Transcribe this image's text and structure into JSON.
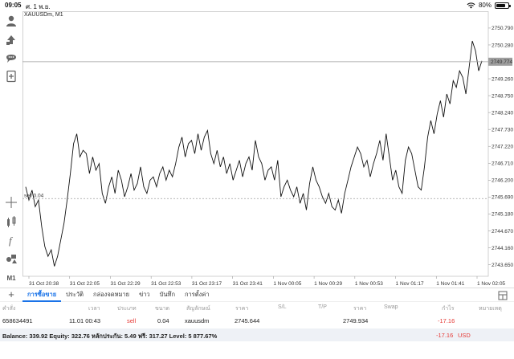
{
  "status_bar": {
    "time": "09:05",
    "date": "ศ. 1 พ.ย.",
    "battery": "80%",
    "battery_level": 0.8
  },
  "chart": {
    "title": "XAUUSDm, M1",
    "current_price": "2749.774",
    "bid_line_label": "sell 0.04",
    "colors": {
      "line": "#111111",
      "grid": "#d9d9d9",
      "current_line": "#9e9e9e",
      "current_tag": "#9e9e9e"
    }
  },
  "chart_data": {
    "type": "line",
    "symbol": "XAUUSDm",
    "timeframe": "M1",
    "y_ticks": [
      "2750.790",
      "2750.280",
      "2749.774",
      "2749.260",
      "2748.750",
      "2748.240",
      "2747.730",
      "2747.220",
      "2746.710",
      "2746.200",
      "2745.690",
      "2745.180",
      "2744.670",
      "2744.160",
      "2743.650"
    ],
    "x_ticks": [
      "31 Oct 20:38",
      "31 Oct 22:05",
      "31 Oct 22:29",
      "31 Oct 22:53",
      "31 Oct 23:17",
      "31 Oct 23:41",
      "1 Nov 00:05",
      "1 Nov 00:29",
      "1 Nov 00:53",
      "1 Nov 01:17",
      "1 Nov 01:41",
      "1 Nov 02:05"
    ],
    "ylim": [
      2743.3,
      2751.2
    ],
    "current_price": 2749.774,
    "order_price": 2745.644,
    "values": [
      2746.0,
      2745.6,
      2745.9,
      2745.4,
      2745.6,
      2744.8,
      2744.2,
      2743.9,
      2744.1,
      2743.6,
      2743.9,
      2744.4,
      2744.9,
      2745.6,
      2746.4,
      2747.3,
      2747.6,
      2746.9,
      2747.1,
      2747.0,
      2746.4,
      2746.9,
      2746.5,
      2746.7,
      2745.8,
      2745.5,
      2746.0,
      2746.3,
      2745.8,
      2746.5,
      2746.2,
      2745.7,
      2746.0,
      2746.4,
      2745.9,
      2746.1,
      2746.6,
      2746.0,
      2745.8,
      2746.2,
      2746.3,
      2746.0,
      2746.4,
      2746.6,
      2746.2,
      2746.5,
      2746.3,
      2746.7,
      2747.2,
      2747.5,
      2746.9,
      2747.3,
      2747.4,
      2747.0,
      2747.6,
      2747.1,
      2747.5,
      2747.7,
      2747.0,
      2746.7,
      2747.1,
      2746.6,
      2746.9,
      2746.4,
      2746.7,
      2746.2,
      2746.5,
      2746.8,
      2746.3,
      2746.7,
      2746.9,
      2746.5,
      2747.4,
      2746.9,
      2746.7,
      2746.2,
      2746.5,
      2746.6,
      2746.2,
      2746.8,
      2745.7,
      2746.0,
      2746.2,
      2745.9,
      2745.7,
      2746.0,
      2745.5,
      2745.8,
      2745.3,
      2746.1,
      2746.6,
      2746.2,
      2746.0,
      2745.7,
      2745.5,
      2745.8,
      2745.4,
      2745.3,
      2745.6,
      2745.2,
      2745.8,
      2746.2,
      2746.6,
      2746.9,
      2747.2,
      2747.0,
      2746.6,
      2746.8,
      2746.3,
      2746.7,
      2747.0,
      2747.4,
      2746.8,
      2747.6,
      2746.9,
      2746.2,
      2746.5,
      2746.0,
      2745.8,
      2746.8,
      2747.2,
      2747.0,
      2746.5,
      2746.0,
      2745.9,
      2746.6,
      2747.5,
      2748.0,
      2747.6,
      2748.2,
      2748.6,
      2748.1,
      2748.8,
      2748.5,
      2749.2,
      2749.0,
      2749.5,
      2749.3,
      2748.8,
      2749.6,
      2750.4,
      2750.1,
      2749.5,
      2749.8
    ]
  },
  "left_toolbar": {
    "icons": [
      "account-icon",
      "trade-icon",
      "chat-icon",
      "new-order-icon",
      "crosshair-icon",
      "indicators-icon",
      "function-icon",
      "objects-icon"
    ],
    "timeframe_label": "M1"
  },
  "bottom": {
    "tabs": [
      "การซื้อขาย",
      "ประวัติ",
      "กล่องจดหมาย",
      "ข่าว",
      "บันทึก",
      "การตั้งค่า"
    ],
    "active_tab": 0,
    "columns": [
      "คำสั่ง",
      "เวลา",
      "ประเภท",
      "ขนาด",
      "สัญลักษณ์",
      "ราคา",
      "S/L",
      "T/P",
      "ราคา",
      "Swap",
      "กำไร",
      "หมายเหตุ"
    ],
    "rows": [
      {
        "order": "658634491",
        "time": "11.01 00:43",
        "type": "sell",
        "size": "0.04",
        "symbol": "xauusdm",
        "price": "2745.644",
        "sl": "",
        "tp": "",
        "current": "2749.934",
        "swap": "",
        "profit": "-17.16",
        "comment": ""
      }
    ],
    "balance_text": "Balance: 339.92 Equity: 322.76 หลักประกัน: 5.49 ฟรี: 317.27 Level: 5 877.67%",
    "total_profit": "-17.16",
    "currency": "USD"
  }
}
